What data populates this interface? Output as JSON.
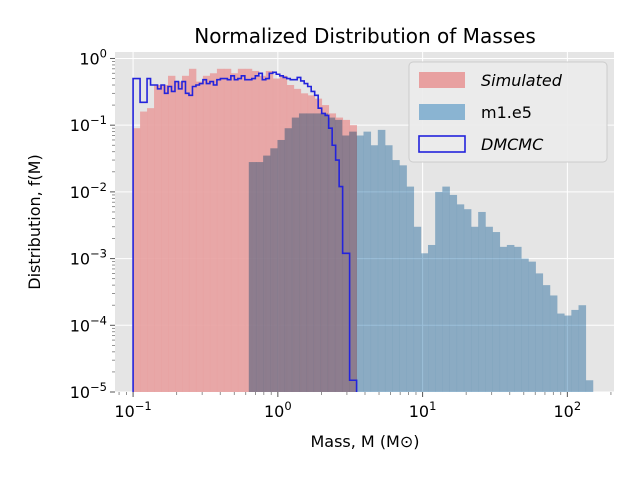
{
  "chart_data": {
    "type": "histogram",
    "title": "Normalized Distribution of Masses",
    "xlabel": "Mass, M  (M⊙)",
    "ylabel": "Distribution, f(M)",
    "xscale": "log",
    "yscale": "log",
    "xlim": [
      0.075,
      210
    ],
    "ylim": [
      1e-05,
      1.25
    ],
    "xticks": [
      {
        "value": 0.1,
        "base": "10",
        "exp": "−1"
      },
      {
        "value": 1,
        "base": "10",
        "exp": "0"
      },
      {
        "value": 10,
        "base": "10",
        "exp": "1"
      },
      {
        "value": 100,
        "base": "10",
        "exp": "2"
      }
    ],
    "yticks": [
      {
        "value": 1e-05,
        "base": "10",
        "exp": "−5"
      },
      {
        "value": 0.0001,
        "base": "10",
        "exp": "−4"
      },
      {
        "value": 0.001,
        "base": "10",
        "exp": "−3"
      },
      {
        "value": 0.01,
        "base": "10",
        "exp": "−2"
      },
      {
        "value": 0.1,
        "base": "10",
        "exp": "−1"
      },
      {
        "value": 1,
        "base": "10",
        "exp": "0"
      }
    ],
    "grid": true,
    "legend_position": "top-right",
    "background": "#e5e5e5",
    "series": [
      {
        "name": "Simulated",
        "style": "filled",
        "color": "#e8a0a0",
        "bin_edges": [
          0.1,
          3.5
        ],
        "bins": 32,
        "values": [
          0.09,
          0.16,
          0.18,
          0.4,
          0.4,
          0.55,
          0.45,
          0.55,
          0.7,
          0.45,
          0.55,
          0.6,
          0.7,
          0.7,
          0.6,
          0.7,
          0.7,
          0.65,
          0.55,
          0.65,
          0.5,
          0.55,
          0.4,
          0.35,
          0.3,
          0.28,
          0.25,
          0.2,
          0.15,
          0.13,
          0.12,
          0.1
        ]
      },
      {
        "name": "m1.e5",
        "style": "filled",
        "color": "#8ab4d2",
        "bin_edges": [
          0.63,
          150
        ],
        "bins": 48,
        "values": [
          0.028,
          0.028,
          0.035,
          0.045,
          0.06,
          0.09,
          0.13,
          0.15,
          0.15,
          0.15,
          0.15,
          0.13,
          0.12,
          0.07,
          0.08,
          0.07,
          0.08,
          0.05,
          0.085,
          0.05,
          0.03,
          0.025,
          0.012,
          0.003,
          0.0012,
          0.0016,
          0.01,
          0.012,
          0.009,
          0.0065,
          0.0055,
          0.003,
          0.005,
          0.003,
          0.0025,
          0.0015,
          0.0016,
          0.0015,
          0.001,
          0.0009,
          0.0006,
          0.0004,
          0.00028,
          0.00015,
          0.00014,
          0.00017,
          0.0002,
          1.5e-05
        ]
      },
      {
        "name": "DMCMC",
        "style": "step",
        "color": "#2323dc",
        "bin_edges": [
          0.1,
          3.5
        ],
        "bins": 64,
        "values": [
          0.5,
          0.5,
          0.22,
          0.22,
          0.5,
          0.4,
          0.4,
          0.35,
          0.4,
          0.3,
          0.38,
          0.32,
          0.45,
          0.35,
          0.45,
          0.3,
          0.28,
          0.38,
          0.4,
          0.42,
          0.48,
          0.42,
          0.45,
          0.4,
          0.48,
          0.5,
          0.5,
          0.48,
          0.55,
          0.48,
          0.5,
          0.55,
          0.48,
          0.48,
          0.5,
          0.55,
          0.6,
          0.48,
          0.5,
          0.6,
          0.62,
          0.58,
          0.55,
          0.52,
          0.5,
          0.48,
          0.48,
          0.52,
          0.46,
          0.42,
          0.38,
          0.32,
          0.28,
          0.18,
          0.15,
          0.14,
          0.09,
          0.05,
          0.03,
          0.012,
          0.0012,
          0.0012,
          1.5e-05,
          1.5e-05
        ]
      }
    ]
  }
}
